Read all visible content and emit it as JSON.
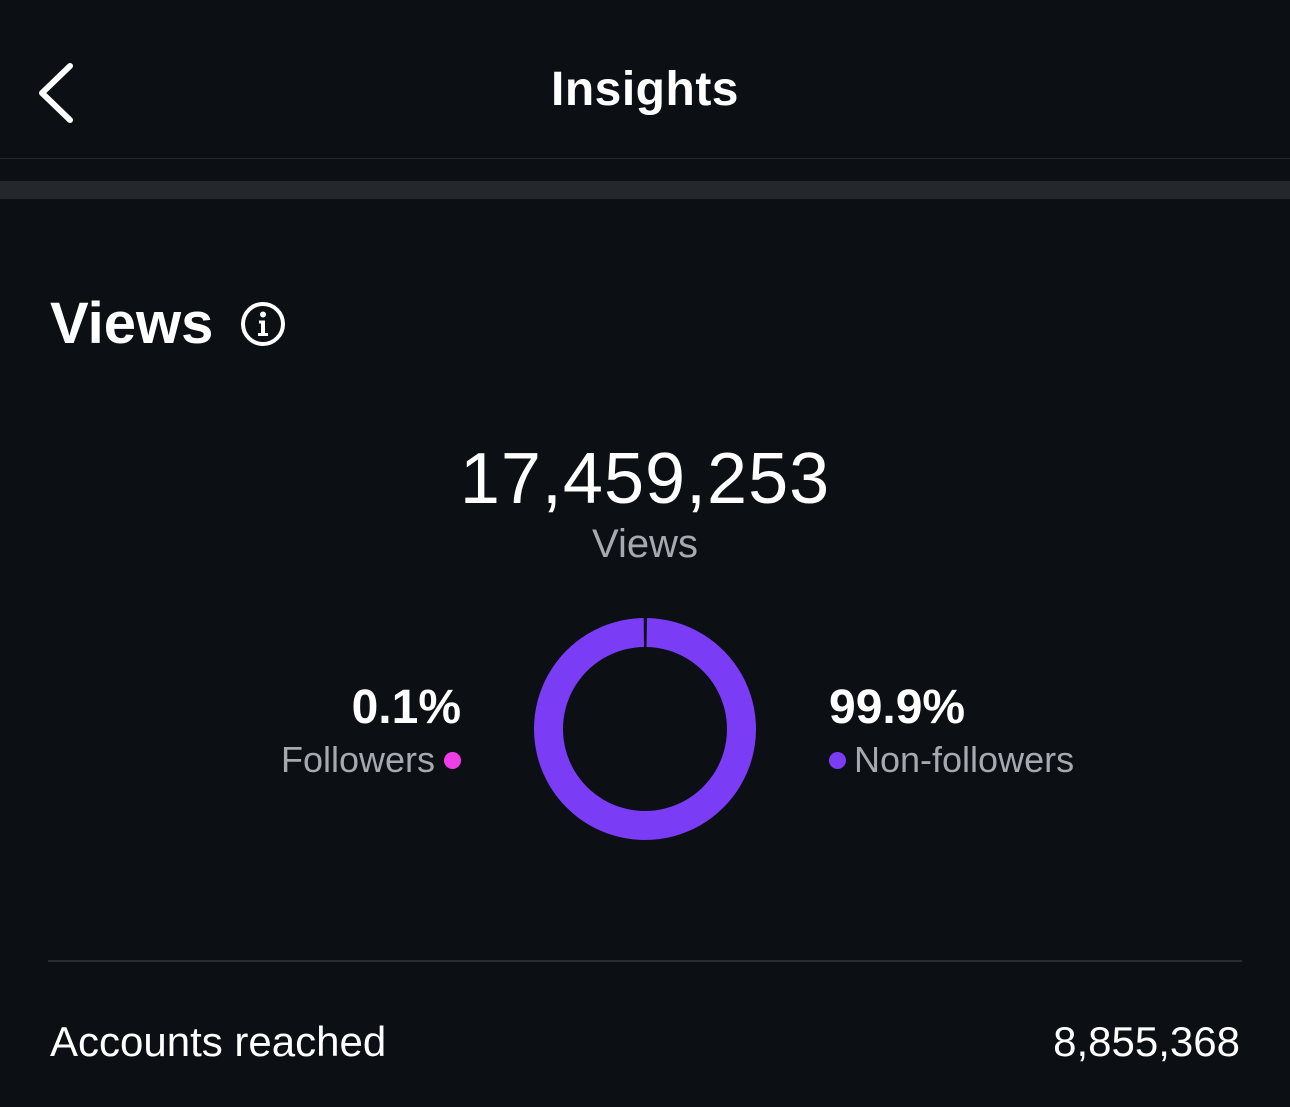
{
  "header": {
    "title": "Insights",
    "back_icon": "chevron-left-icon"
  },
  "views": {
    "section_title": "Views",
    "info_icon": "info-icon",
    "total_value": "17,459,253",
    "total_label": "Views",
    "breakdown": {
      "followers": {
        "percent": "0.1%",
        "label": "Followers",
        "color": "#f03ee6",
        "share": 0.1
      },
      "non_followers": {
        "percent": "99.9%",
        "label": "Non-followers",
        "color": "#7b3cf6",
        "share": 99.9
      }
    }
  },
  "metrics": [
    {
      "label": "Accounts reached",
      "value": "8,855,368"
    }
  ],
  "chart_data": {
    "type": "pie",
    "categories": [
      "Followers",
      "Non-followers"
    ],
    "values": [
      0.1,
      99.9
    ],
    "colors": [
      "#f03ee6",
      "#7b3cf6"
    ],
    "title": ""
  }
}
